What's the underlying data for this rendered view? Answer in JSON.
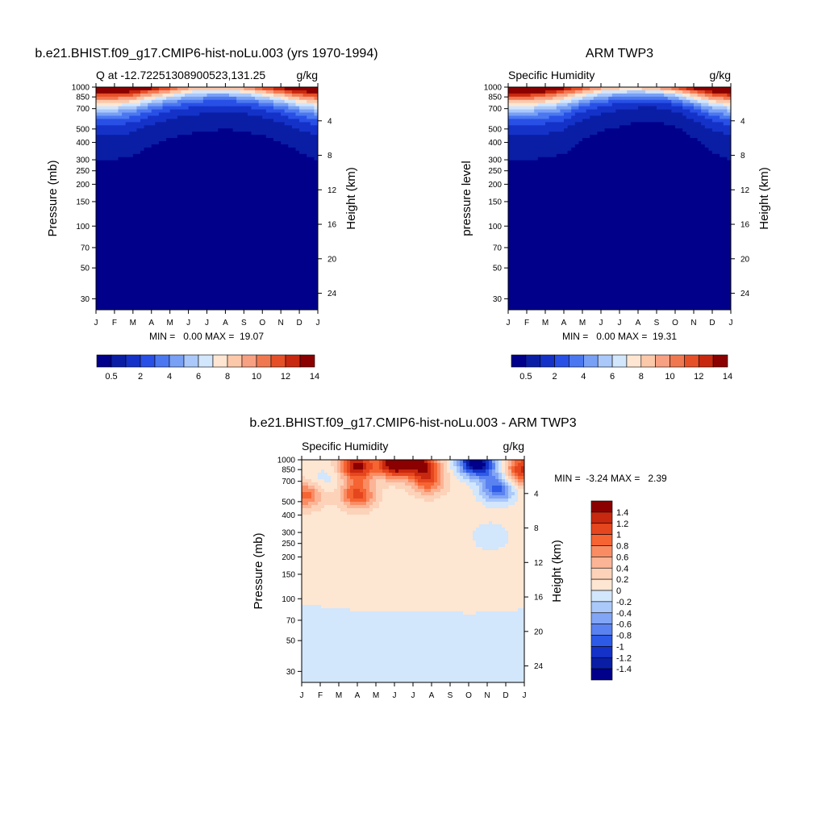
{
  "chart_data": [
    {
      "type": "heatmap",
      "title": "b.e21.BHIST.f09_g17.CMIP6-hist-noLu.003 (yrs 1970-1994)",
      "left_title": "Q at -12.72251308900523,131.25",
      "right_title": "g/kg",
      "ylabel": "Pressure (mb)",
      "y2label": "Height (km)",
      "x_ticks": [
        "J",
        "F",
        "M",
        "A",
        "M",
        "J",
        "J",
        "A",
        "S",
        "O",
        "N",
        "D",
        "J"
      ],
      "y_ticks": [
        "30",
        "50",
        "70",
        "100",
        "150",
        "200",
        "250",
        "300",
        "400",
        "500",
        "700",
        "850",
        "1000"
      ],
      "y2_ticks": [
        "24",
        "20",
        "16",
        "12",
        "8",
        "4"
      ],
      "stats": "MIN =   0.00 MAX =  19.07",
      "colorbar_labels": [
        "0.5",
        "2",
        "4",
        "6",
        "8",
        "10",
        "12",
        "14"
      ],
      "colorbar_colors": [
        "#00008b",
        "#0a1ea5",
        "#1432c8",
        "#2850e6",
        "#4b78f0",
        "#78a0f5",
        "#aac8fa",
        "#d2e6fc",
        "#ffe6d2",
        "#fcc8aa",
        "#f8a082",
        "#f07850",
        "#e65028",
        "#c8280f",
        "#8b0000"
      ],
      "tropopause_p": [
        300,
        300,
        320,
        380,
        430,
        460,
        480,
        500,
        480,
        450,
        400,
        340,
        300
      ],
      "surface_q": [
        17,
        17,
        16,
        14,
        12,
        10,
        9,
        9,
        10,
        12,
        14,
        16,
        17
      ]
    },
    {
      "type": "heatmap",
      "title": "ARM TWP3",
      "left_title": "Specific Humidity",
      "right_title": "g/kg",
      "ylabel": "pressure level",
      "y2label": "Height (km)",
      "x_ticks": [
        "J",
        "F",
        "M",
        "A",
        "M",
        "J",
        "J",
        "A",
        "S",
        "O",
        "N",
        "D",
        "J"
      ],
      "y_ticks": [
        "30",
        "50",
        "70",
        "100",
        "150",
        "200",
        "250",
        "300",
        "400",
        "500",
        "700",
        "850",
        "1000"
      ],
      "y2_ticks": [
        "24",
        "20",
        "16",
        "12",
        "8",
        "4"
      ],
      "stats": "MIN =   0.00 MAX =  19.31",
      "colorbar_labels": [
        "0.5",
        "2",
        "4",
        "6",
        "8",
        "10",
        "12",
        "14"
      ],
      "colorbar_colors": [
        "#00008b",
        "#0a1ea5",
        "#1432c8",
        "#2850e6",
        "#4b78f0",
        "#78a0f5",
        "#aac8fa",
        "#d2e6fc",
        "#ffe6d2",
        "#fcc8aa",
        "#f8a082",
        "#f07850",
        "#e65028",
        "#c8280f",
        "#8b0000"
      ],
      "tropopause_p": [
        300,
        300,
        310,
        330,
        420,
        480,
        520,
        560,
        570,
        520,
        430,
        340,
        300
      ],
      "surface_q": [
        17.5,
        17.5,
        16,
        14,
        12,
        10,
        9,
        9,
        10,
        12,
        14.5,
        16.5,
        17.5
      ]
    },
    {
      "type": "heatmap",
      "title": "b.e21.BHIST.f09_g17.CMIP6-hist-noLu.003 - ARM TWP3",
      "left_title": "Specific Humidity",
      "right_title": "g/kg",
      "ylabel": "Pressure (mb)",
      "y2label": "Height (km)",
      "x_ticks": [
        "J",
        "F",
        "M",
        "A",
        "M",
        "J",
        "J",
        "A",
        "S",
        "O",
        "N",
        "D",
        "J"
      ],
      "y_ticks": [
        "30",
        "50",
        "70",
        "100",
        "150",
        "200",
        "250",
        "300",
        "400",
        "500",
        "700",
        "850",
        "1000"
      ],
      "y2_ticks": [
        "24",
        "20",
        "16",
        "12",
        "8",
        "4"
      ],
      "stats": "MIN =  -3.24 MAX =   2.39",
      "colorbar_labels": [
        "1.4",
        "1.2",
        "1",
        "0.8",
        "0.6",
        "0.4",
        "0.2",
        "0",
        "-0.2",
        "-0.4",
        "-0.6",
        "-0.8",
        "-1",
        "-1.2",
        "-1.4"
      ],
      "colorbar_colors": [
        "#8b0000",
        "#c8280f",
        "#e6461e",
        "#f56432",
        "#fa8c64",
        "#fcb496",
        "#fcd2b9",
        "#fde6d2",
        "#d2e6fc",
        "#aac8fa",
        "#82a5f5",
        "#5a82f0",
        "#2d5ae6",
        "#1432c8",
        "#0a1ea5",
        "#00008b"
      ],
      "upper_boundary_p": [
        88,
        88,
        86,
        82,
        80,
        80,
        81,
        81,
        82,
        78,
        80,
        82,
        84
      ],
      "anomalies": [
        {
          "month": 0.2,
          "p": 560,
          "v": 0.8
        },
        {
          "month": 3.0,
          "p": 560,
          "v": 1.0
        },
        {
          "month": 3.0,
          "p": 900,
          "v": 1.4
        },
        {
          "month": 5.0,
          "p": 930,
          "v": 1.6
        },
        {
          "month": 6.8,
          "p": 700,
          "v": 0.8
        },
        {
          "month": 6.5,
          "p": 930,
          "v": 1.2
        },
        {
          "month": 1.2,
          "p": 720,
          "v": -0.2
        },
        {
          "month": 10.6,
          "p": 620,
          "v": -1.0
        },
        {
          "month": 10.2,
          "p": 280,
          "v": -0.3
        },
        {
          "month": 9.3,
          "p": 980,
          "v": -1.4
        },
        {
          "month": 9.8,
          "p": 880,
          "v": -0.6
        },
        {
          "month": 11.8,
          "p": 760,
          "v": 0.6
        },
        {
          "month": 12.0,
          "p": 920,
          "v": 0.8
        }
      ]
    }
  ]
}
